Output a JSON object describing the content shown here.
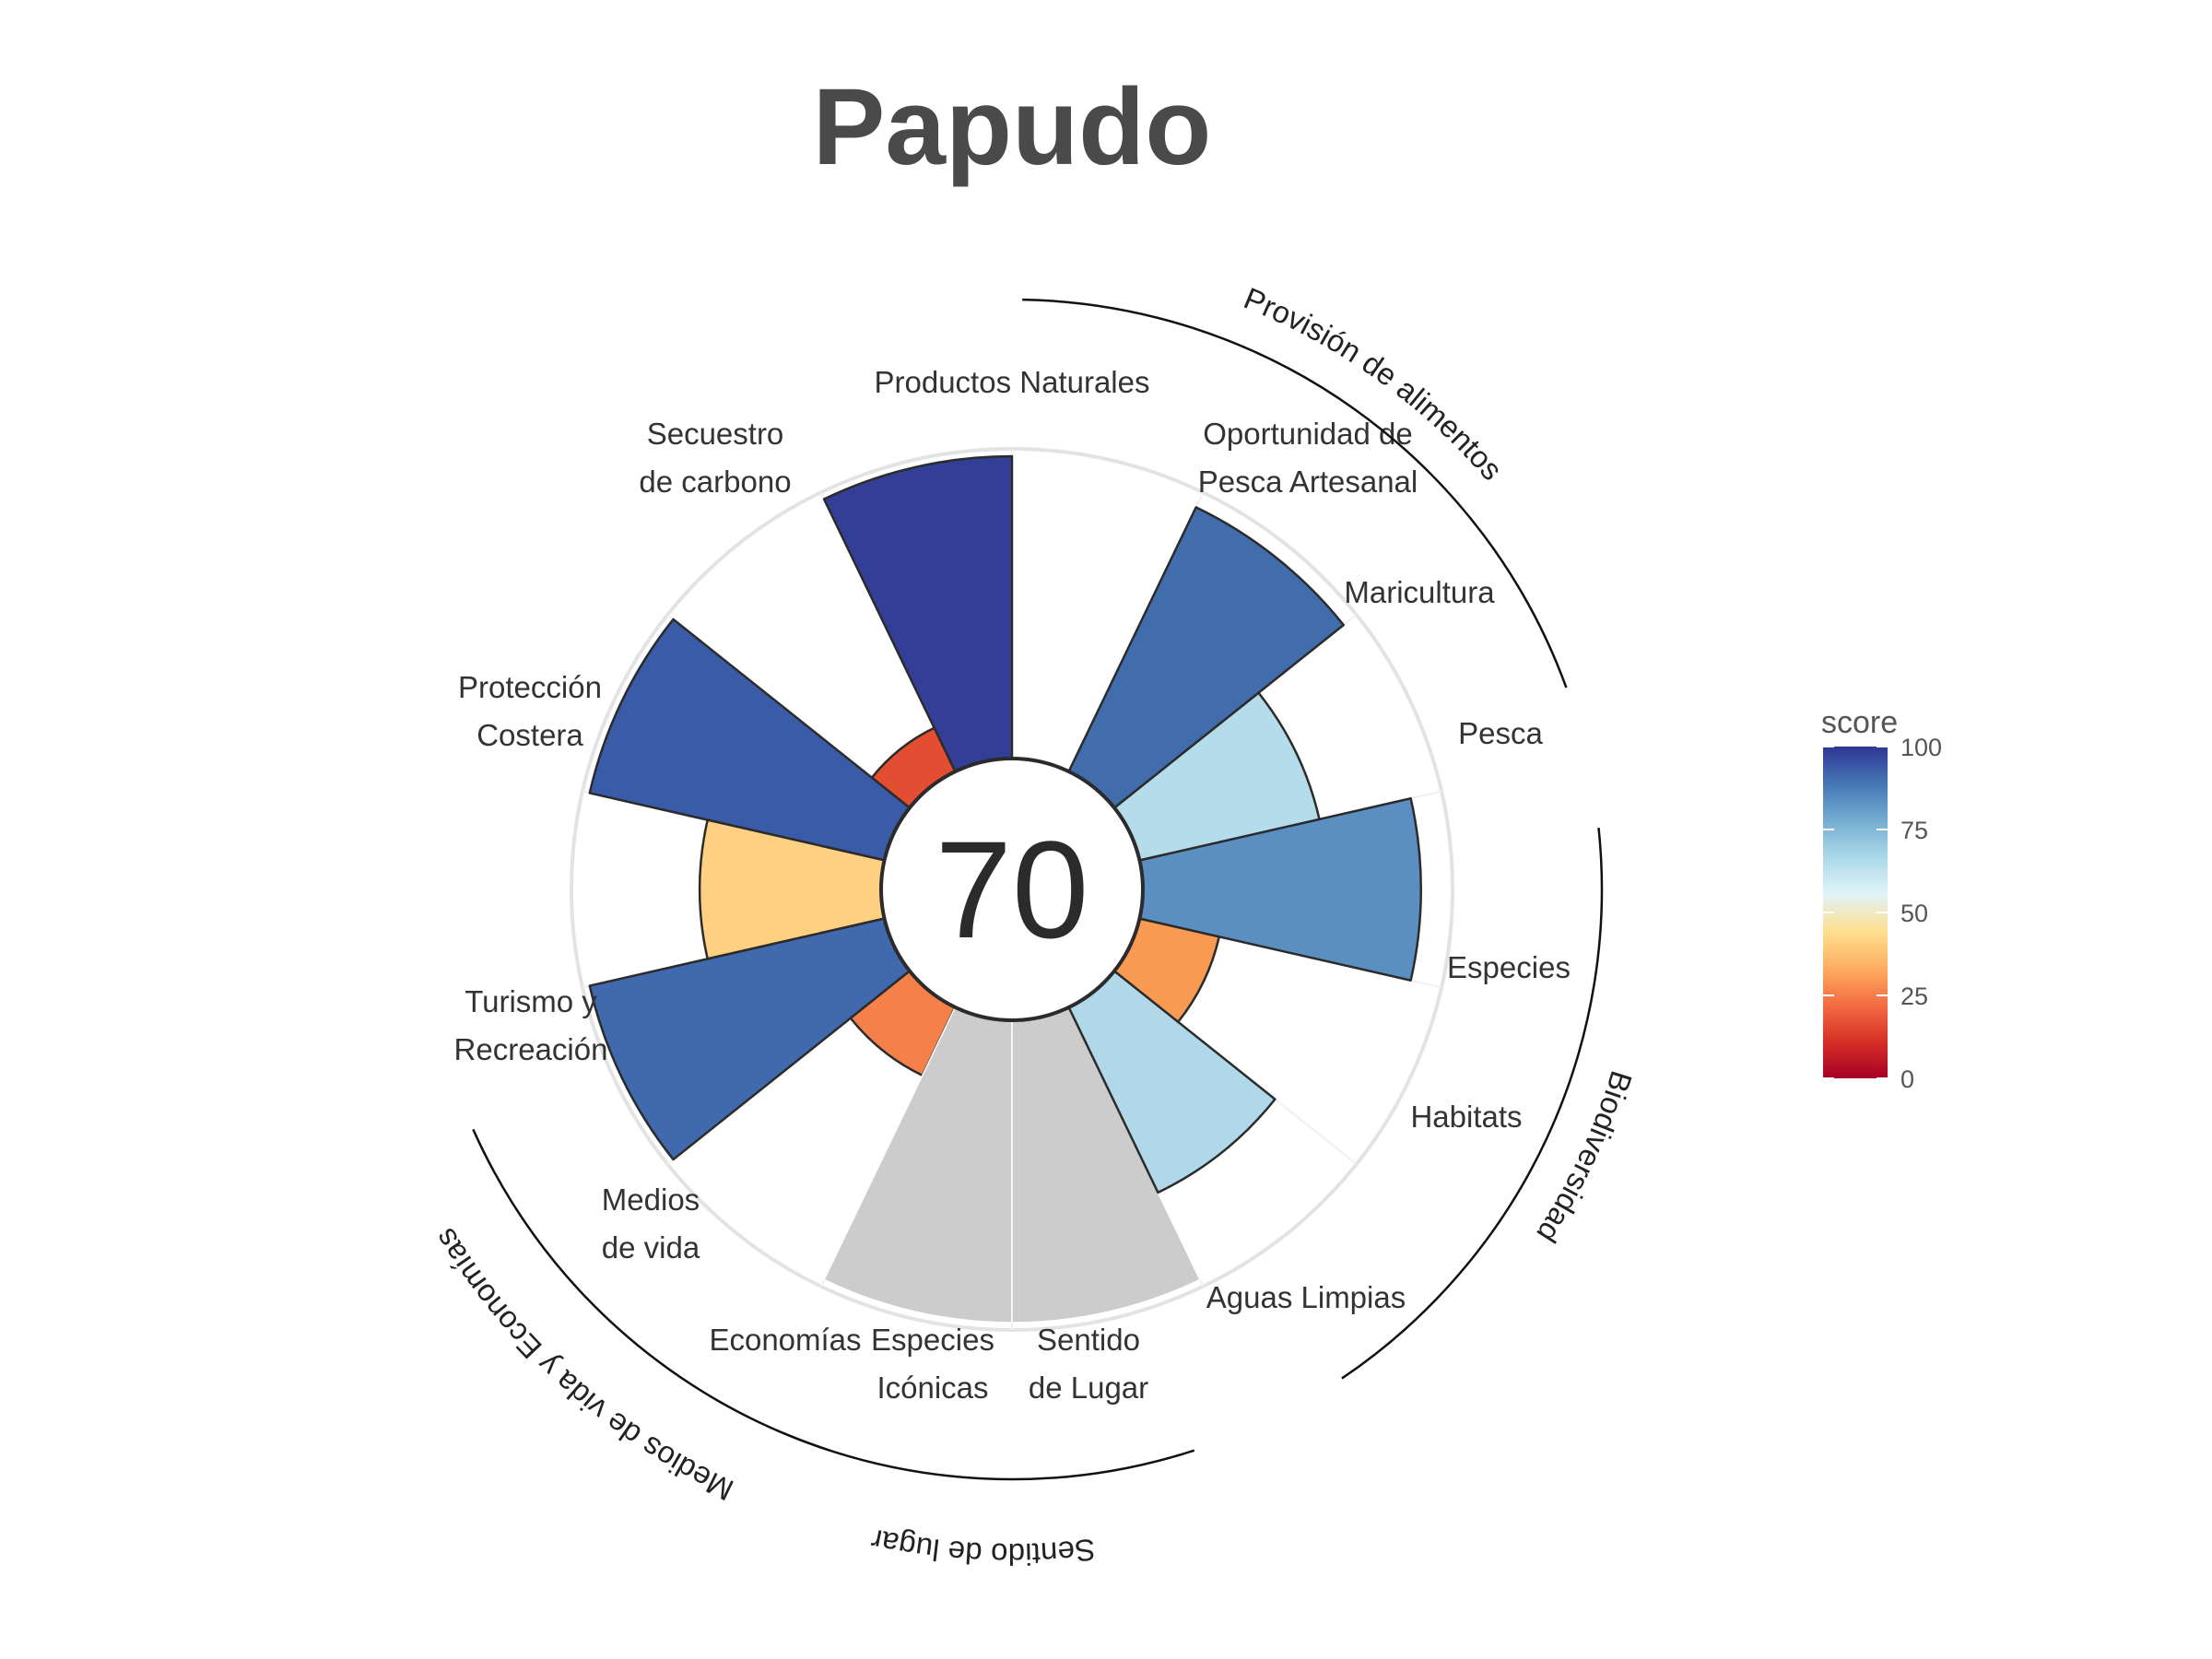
{
  "chart_data": {
    "type": "polar-bar",
    "title": "Papudo",
    "center_value": "70",
    "color_scale": {
      "title": "score",
      "range": [
        0,
        100
      ],
      "ticks": [
        0,
        25,
        50,
        75,
        100
      ],
      "colors": [
        "#a50026",
        "#d73027",
        "#f46d43",
        "#fdae61",
        "#fee090",
        "#e0f3f8",
        "#abd9e9",
        "#74add1",
        "#4575b4",
        "#313695"
      ]
    },
    "goals": [
      {
        "label": [
          "Pesca"
        ],
        "value": 100,
        "color": "#333f97"
      },
      {
        "label": [
          "Maricultura"
        ],
        "value": 16,
        "color": "#e34e32"
      },
      {
        "label": [
          "Productos Naturales"
        ],
        "value": 100,
        "color": "#3a5ba8"
      },
      {
        "label": [
          "Secuestro",
          "de carbono"
        ],
        "value": 60,
        "color": "#fdd082"
      },
      {
        "label": [
          "Protección",
          "Costera"
        ],
        "value": 100,
        "color": "#4069ae"
      },
      {
        "label": [
          "Turismo y",
          "Recreación"
        ],
        "value": 25,
        "color": "#f5804a"
      },
      {
        "label": [
          "Medios",
          "de vida"
        ],
        "value": null,
        "color": "#cccccc"
      },
      {
        "label": [
          "Economías"
        ],
        "value": null,
        "color": "#cccccc"
      },
      {
        "label": [
          "Especies",
          "Icónicas"
        ],
        "value": 68,
        "color": "#b0d8e8"
      },
      {
        "label": [
          "Sentido",
          "de Lugar"
        ],
        "value": 27,
        "color": "#f99a53"
      },
      {
        "label": [
          "Aguas Limpias"
        ],
        "value": 92,
        "color": "#5b8fc2"
      },
      {
        "label": [
          "Habitats"
        ],
        "value": 61,
        "color": "#b5dcea"
      },
      {
        "label": [
          "Especies"
        ],
        "value": 97,
        "color": "#416dad"
      }
    ],
    "extra_labels": [
      {
        "label": [
          "Oportunidad de",
          "Pesca Artesanal"
        ],
        "value": null
      }
    ],
    "groups": [
      {
        "name": "Provisión de alimentos"
      },
      {
        "name": "Biodiversidad"
      },
      {
        "name": "Sentido de lugar"
      },
      {
        "name": "Medios de vida y Economías"
      }
    ]
  }
}
